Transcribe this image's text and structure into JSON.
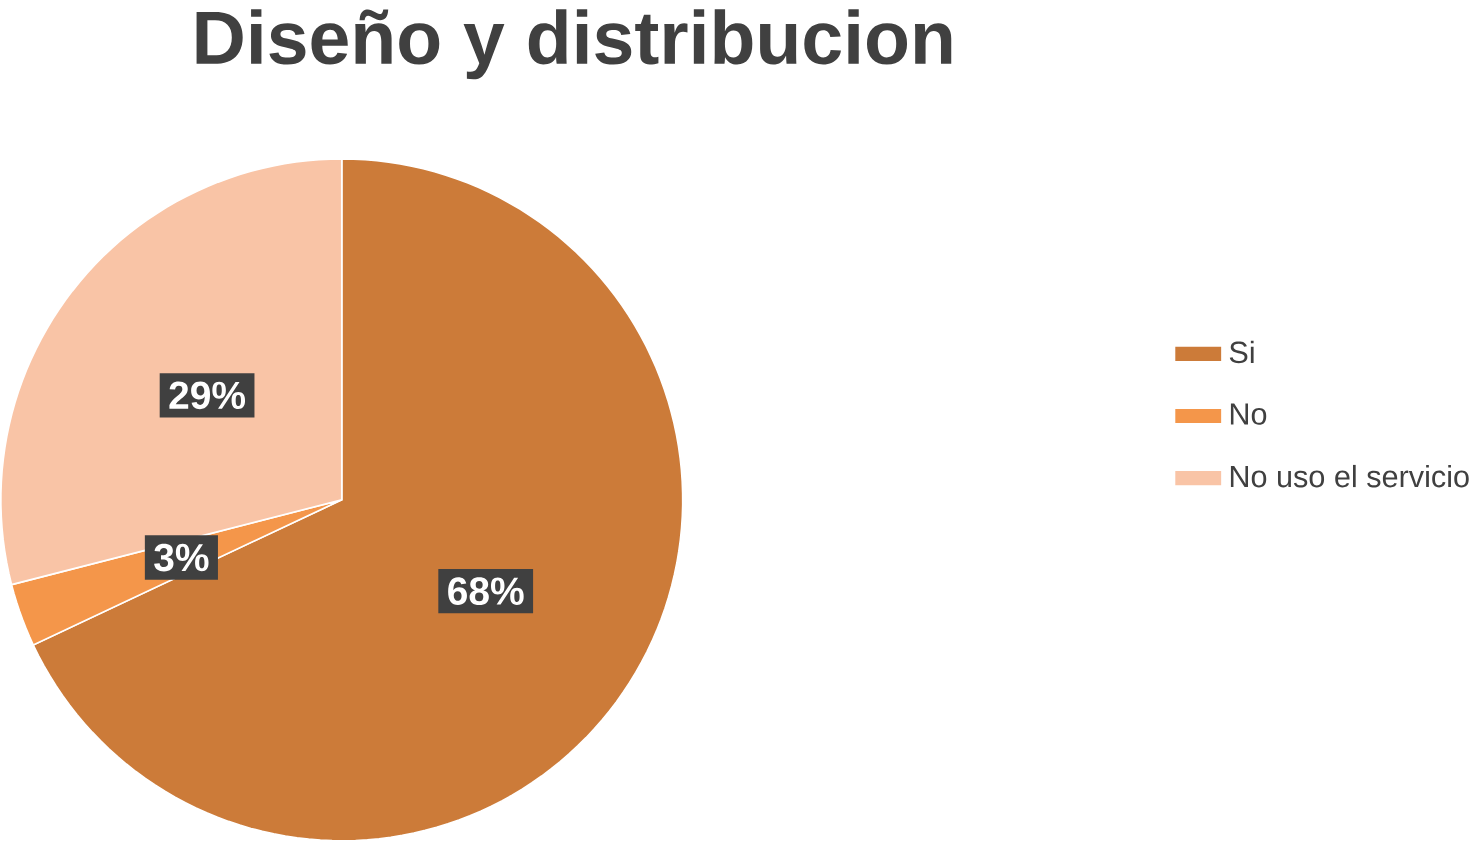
{
  "chart_data": {
    "type": "pie",
    "title": "Diseño y distribucion",
    "categories": [
      "Si",
      "No",
      "No uso el servicio"
    ],
    "values": [
      68,
      3,
      29
    ],
    "value_labels": [
      "68%",
      "3%",
      "29%"
    ],
    "colors": [
      "#cc7b39",
      "#f4964a",
      "#f9c4a6"
    ],
    "legend": "right"
  }
}
